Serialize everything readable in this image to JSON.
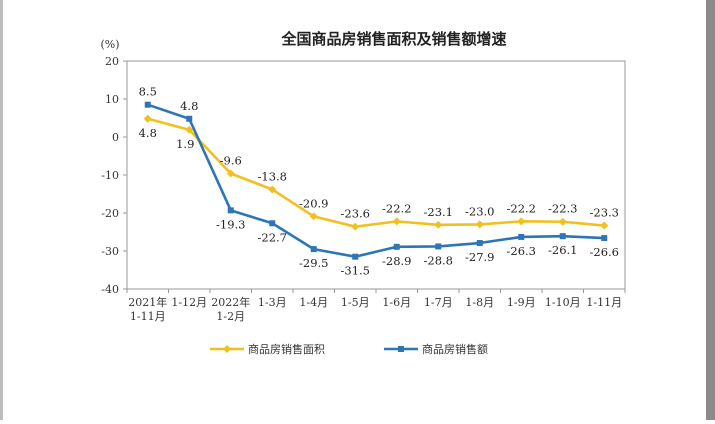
{
  "chart_data": {
    "type": "line",
    "title": "全国商品房销售面积及销售额增速",
    "ylabel": "(%)",
    "xlabel": "",
    "ylim": [
      -40,
      20
    ],
    "yticks": [
      20,
      10,
      0,
      -10,
      -20,
      -30,
      -40
    ],
    "categories": [
      [
        "2021年",
        "1-11月"
      ],
      [
        "1-12月"
      ],
      [
        "2022年",
        "1-2月"
      ],
      [
        "1-3月"
      ],
      [
        "1-4月"
      ],
      [
        "1-5月"
      ],
      [
        "1-6月"
      ],
      [
        "1-7月"
      ],
      [
        "1-8月"
      ],
      [
        "1-9月"
      ],
      [
        "1-10月"
      ],
      [
        "1-11月"
      ]
    ],
    "series": [
      {
        "name": "商品房销售面积",
        "color": "#f2c01e",
        "values": [
          4.8,
          1.9,
          -9.6,
          -13.8,
          -20.9,
          -23.6,
          -22.2,
          -23.1,
          -23.0,
          -22.2,
          -22.3,
          -23.3
        ],
        "labels": [
          "4.8",
          "1.9",
          "-9.6",
          "-13.8",
          "-20.9",
          "-23.6",
          "-22.2",
          "-23.1",
          "-23.0",
          "-22.2",
          "-22.3",
          "-23.3"
        ]
      },
      {
        "name": "商品房销售额",
        "color": "#2e75b6",
        "values": [
          8.5,
          4.8,
          -19.3,
          -22.7,
          -29.5,
          -31.5,
          -28.9,
          -28.8,
          -27.9,
          -26.3,
          -26.1,
          -26.6
        ],
        "labels": [
          "8.5",
          "4.8",
          "-19.3",
          "-22.7",
          "-29.5",
          "-31.5",
          "-28.9",
          "-28.8",
          "-27.9",
          "-26.3",
          "-26.1",
          "-26.6"
        ]
      }
    ],
    "grid": false,
    "legend": "bottom"
  }
}
